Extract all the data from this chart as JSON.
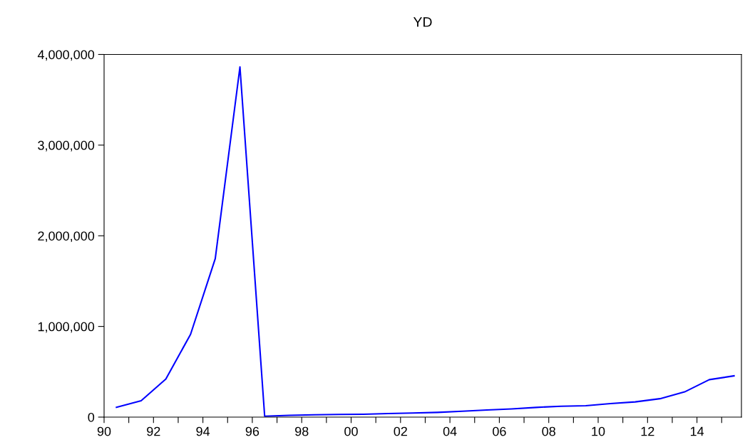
{
  "chart_data": {
    "type": "line",
    "title": "YD",
    "x": [
      1990.5,
      1991.5,
      1992.5,
      1993.5,
      1994.5,
      1995.5,
      1996.5,
      1997.5,
      1998.5,
      1999.5,
      2000.5,
      2001.5,
      2002.5,
      2003.5,
      2004.5,
      2005.5,
      2006.5,
      2007.5,
      2008.5,
      2009.5,
      2010.5,
      2011.5,
      2012.5,
      2013.5,
      2014.5,
      2015.5
    ],
    "series": [
      {
        "color": "#0000ff",
        "values": [
          108000,
          180000,
          420000,
          913000,
          1748000,
          3862000,
          10000,
          20000,
          26000,
          29000,
          32000,
          39000,
          45000,
          52000,
          65000,
          78000,
          90000,
          107000,
          120000,
          126000,
          149000,
          168000,
          203000,
          278000,
          413000,
          455000
        ]
      }
    ],
    "xlim": [
      1990,
      2015.8
    ],
    "xticks": [
      {
        "value": 1990,
        "label": "90"
      },
      {
        "value": 1991,
        "label": null
      },
      {
        "value": 1992,
        "label": "92"
      },
      {
        "value": 1993,
        "label": null
      },
      {
        "value": 1994,
        "label": "94"
      },
      {
        "value": 1995,
        "label": null
      },
      {
        "value": 1996,
        "label": "96"
      },
      {
        "value": 1997,
        "label": null
      },
      {
        "value": 1998,
        "label": "98"
      },
      {
        "value": 1999,
        "label": null
      },
      {
        "value": 2000,
        "label": "00"
      },
      {
        "value": 2001,
        "label": null
      },
      {
        "value": 2002,
        "label": "02"
      },
      {
        "value": 2003,
        "label": null
      },
      {
        "value": 2004,
        "label": "04"
      },
      {
        "value": 2005,
        "label": null
      },
      {
        "value": 2006,
        "label": "06"
      },
      {
        "value": 2007,
        "label": null
      },
      {
        "value": 2008,
        "label": "08"
      },
      {
        "value": 2009,
        "label": null
      },
      {
        "value": 2010,
        "label": "10"
      },
      {
        "value": 2011,
        "label": null
      },
      {
        "value": 2012,
        "label": "12"
      },
      {
        "value": 2013,
        "label": null
      },
      {
        "value": 2014,
        "label": "14"
      },
      {
        "value": 2015,
        "label": null
      }
    ],
    "ylim": [
      0,
      4000000
    ],
    "yticks": [
      {
        "value": 0,
        "label": "0"
      },
      {
        "value": 1000000,
        "label": "1,000,000"
      },
      {
        "value": 2000000,
        "label": "2,000,000"
      },
      {
        "value": 3000000,
        "label": "3,000,000"
      },
      {
        "value": 4000000,
        "label": "4,000,000"
      }
    ],
    "grid": false,
    "legend": false,
    "marker": "none",
    "line_style": "solid"
  }
}
